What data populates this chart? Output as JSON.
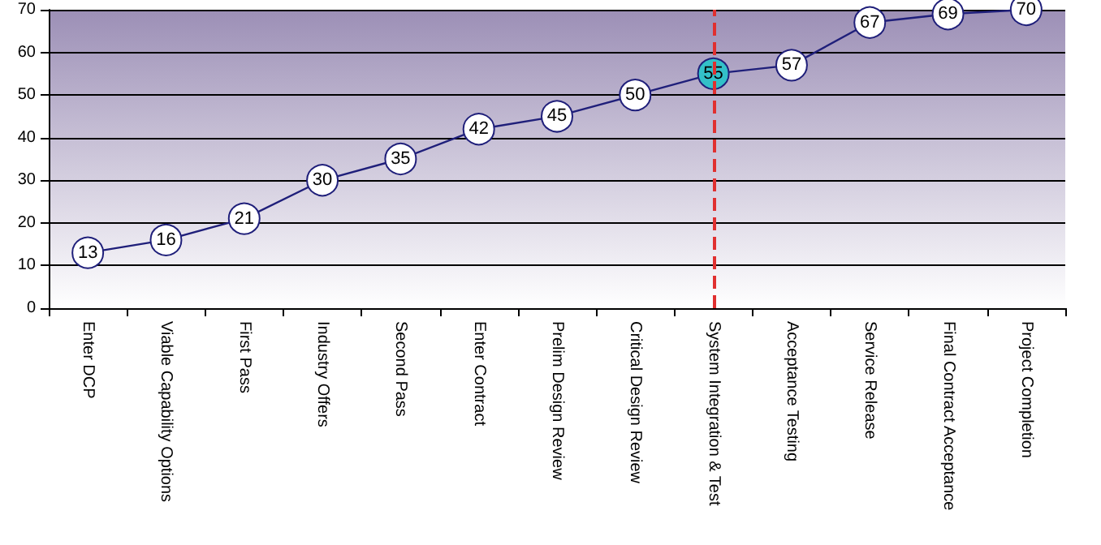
{
  "chart_data": {
    "type": "line",
    "categories": [
      "Enter DCP",
      "Viable Capability Options",
      "First Pass",
      "Industry Offers",
      "Second Pass",
      "Enter Contract",
      "Prelim Design Review",
      "Critical Design Review",
      "System Integration & Test",
      "Acceptance Testing",
      "Service Release",
      "Final Contract Acceptance",
      "Project Completion"
    ],
    "values": [
      13,
      16,
      21,
      30,
      35,
      42,
      45,
      50,
      55,
      57,
      67,
      69,
      70
    ],
    "color": "#1f1f7a",
    "colors": [
      "#ffffff",
      "#ffffff",
      "#ffffff",
      "#ffffff",
      "#ffffff",
      "#ffffff",
      "#ffffff",
      "#ffffff",
      "#33c0c8",
      "#ffffff",
      "#ffffff",
      "#ffffff",
      "#ffffff"
    ],
    "ylim": [
      0,
      70
    ],
    "yticks": [
      0,
      10,
      20,
      30,
      40,
      50,
      60,
      70
    ],
    "grid": "y",
    "marker": "circle",
    "line_style": "solid",
    "data_labels": true,
    "ref_lines": [
      {
        "axis": "x",
        "value": "System Integration & Test",
        "color": "#e03030",
        "line_style": "dashed"
      }
    ]
  }
}
